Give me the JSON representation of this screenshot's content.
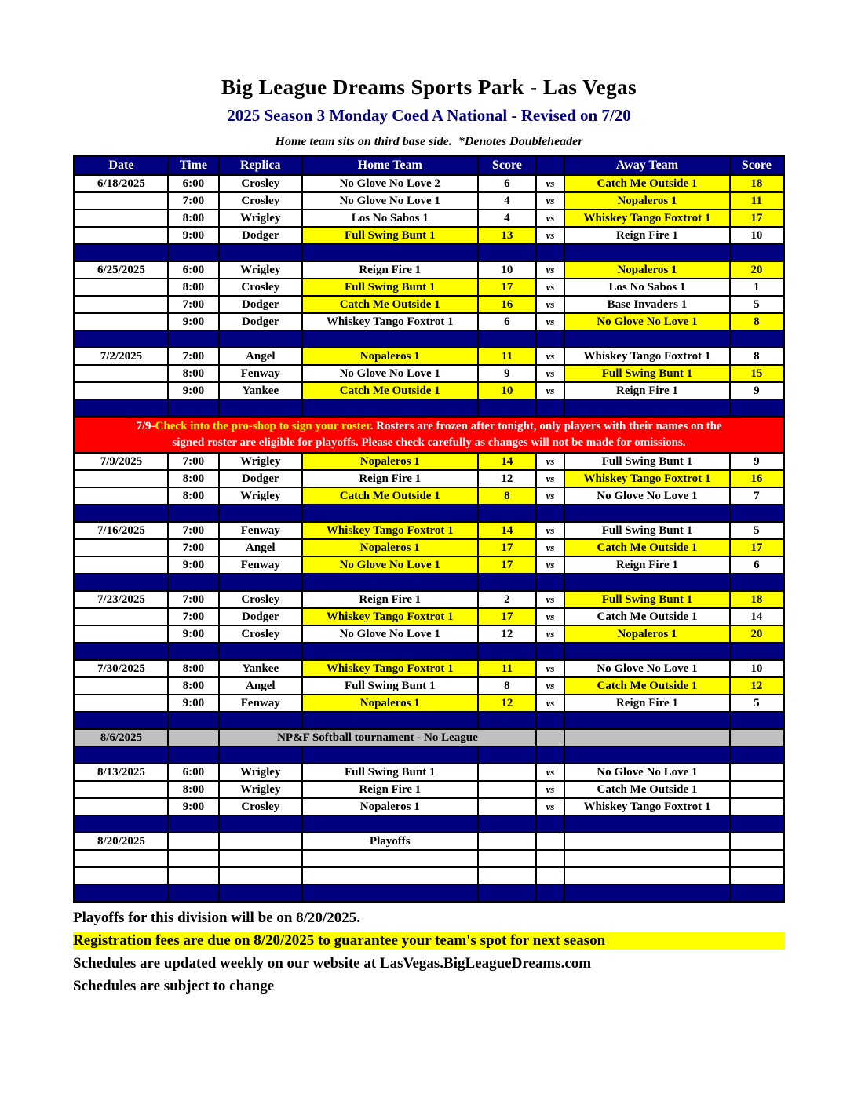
{
  "page": {
    "title": "Big League Dreams Sports Park - Las Vegas",
    "subtitle": "2025 Season 3 Monday Coed A National - Revised on 7/20",
    "note": "Home team sits on third base side.  *Denotes Doubleheader"
  },
  "colors": {
    "header_navy": "#000080",
    "winner_highlight_yellow": "#FFFF00",
    "banner_red": "#FF0000",
    "tournament_gray": "#C0C0C0",
    "subtitle_navy": "#000080"
  },
  "banner": {
    "line1_white_prefix": "7/9-",
    "line1_yellow": "Check into the pro-shop to sign your roster",
    "line1_white_suffix": ". Rosters are frozen after tonight, only players with their names on the",
    "line2": "signed roster are eligible for playoffs. Please check carefully as changes will not be made for omissions."
  },
  "table": {
    "headers": [
      "Date",
      "Time",
      "Replica",
      "Home Team",
      "Score",
      "",
      "Away Team",
      "Score"
    ],
    "vs_label": "vs",
    "rows": [
      {
        "type": "game",
        "date": "6/18/2025",
        "time": "6:00",
        "replica": "Crosley",
        "home": "No Glove No Love 2",
        "home_score": "6",
        "away": "Catch Me Outside 1",
        "away_score": "18",
        "winner": "away"
      },
      {
        "type": "game",
        "date": "",
        "time": "7:00",
        "replica": "Crosley",
        "home": "No Glove No Love 1",
        "home_score": "4",
        "away": "Nopaleros 1",
        "away_score": "11",
        "winner": "away"
      },
      {
        "type": "game",
        "date": "",
        "time": "8:00",
        "replica": "Wrigley",
        "home": "Los No Sabos 1",
        "home_score": "4",
        "away": "Whiskey Tango Foxtrot 1",
        "away_score": "17",
        "winner": "away"
      },
      {
        "type": "game",
        "date": "",
        "time": "9:00",
        "replica": "Dodger",
        "home": "Full Swing Bunt 1",
        "home_score": "13",
        "away": "Reign Fire 1",
        "away_score": "10",
        "winner": "home"
      },
      {
        "type": "separator"
      },
      {
        "type": "game",
        "date": "6/25/2025",
        "time": "6:00",
        "replica": "Wrigley",
        "home": "Reign Fire 1",
        "home_score": "10",
        "away": "Nopaleros 1",
        "away_score": "20",
        "winner": "away"
      },
      {
        "type": "game",
        "date": "",
        "time": "8:00",
        "replica": "Crosley",
        "home": "Full Swing Bunt 1",
        "home_score": "17",
        "away": "Los No Sabos 1",
        "away_score": "1",
        "winner": "home"
      },
      {
        "type": "game",
        "date": "",
        "time": "7:00",
        "replica": "Dodger",
        "home": "Catch Me Outside 1",
        "home_score": "16",
        "away": "Base Invaders 1",
        "away_score": "5",
        "winner": "home"
      },
      {
        "type": "game",
        "date": "",
        "time": "9:00",
        "replica": "Dodger",
        "home": "Whiskey Tango Foxtrot 1",
        "home_score": "6",
        "away": "No Glove No Love 1",
        "away_score": "8",
        "winner": "away"
      },
      {
        "type": "separator"
      },
      {
        "type": "game",
        "date": "7/2/2025",
        "time": "7:00",
        "replica": "Angel",
        "home": "Nopaleros 1",
        "home_score": "11",
        "away": "Whiskey Tango Foxtrot 1",
        "away_score": "8",
        "winner": "home"
      },
      {
        "type": "game",
        "date": "",
        "time": "8:00",
        "replica": "Fenway",
        "home": "No Glove No Love 1",
        "home_score": "9",
        "away": "Full Swing Bunt 1",
        "away_score": "15",
        "winner": "away"
      },
      {
        "type": "game",
        "date": "",
        "time": "9:00",
        "replica": "Yankee",
        "home": "Catch Me Outside 1",
        "home_score": "10",
        "away": "Reign Fire 1",
        "away_score": "9",
        "winner": "home"
      },
      {
        "type": "separator"
      },
      {
        "type": "banner"
      },
      {
        "type": "game",
        "date": "7/9/2025",
        "time": "7:00",
        "replica": "Wrigley",
        "home": "Nopaleros 1",
        "home_score": "14",
        "away": "Full Swing Bunt 1",
        "away_score": "9",
        "winner": "home"
      },
      {
        "type": "game",
        "date": "",
        "time": "8:00",
        "replica": "Dodger",
        "home": "Reign Fire 1",
        "home_score": "12",
        "away": "Whiskey Tango Foxtrot 1",
        "away_score": "16",
        "winner": "away"
      },
      {
        "type": "game",
        "date": "",
        "time": "8:00",
        "replica": "Wrigley",
        "home": "Catch Me Outside 1",
        "home_score": "8",
        "away": "No Glove No Love 1",
        "away_score": "7",
        "winner": "home"
      },
      {
        "type": "separator"
      },
      {
        "type": "game",
        "date": "7/16/2025",
        "time": "7:00",
        "replica": "Fenway",
        "home": "Whiskey Tango Foxtrot 1",
        "home_score": "14",
        "away": "Full Swing Bunt 1",
        "away_score": "5",
        "winner": "home"
      },
      {
        "type": "game",
        "date": "",
        "time": "7:00",
        "replica": "Angel",
        "home": "Nopaleros 1",
        "home_score": "17",
        "away": "Catch Me Outside 1",
        "away_score": "17",
        "winner": "both"
      },
      {
        "type": "game",
        "date": "",
        "time": "9:00",
        "replica": "Fenway",
        "home": "No Glove No Love 1",
        "home_score": "17",
        "away": "Reign Fire 1",
        "away_score": "6",
        "winner": "home"
      },
      {
        "type": "separator"
      },
      {
        "type": "game",
        "date": "7/23/2025",
        "time": "7:00",
        "replica": "Crosley",
        "home": "Reign Fire 1",
        "home_score": "2",
        "away": "Full Swing Bunt 1",
        "away_score": "18",
        "winner": "away"
      },
      {
        "type": "game",
        "date": "",
        "time": "7:00",
        "replica": "Dodger",
        "home": "Whiskey Tango Foxtrot 1",
        "home_score": "17",
        "away": "Catch Me Outside 1",
        "away_score": "14",
        "winner": "home"
      },
      {
        "type": "game",
        "date": "",
        "time": "9:00",
        "replica": "Crosley",
        "home": "No Glove No Love 1",
        "home_score": "12",
        "away": "Nopaleros 1",
        "away_score": "20",
        "winner": "away"
      },
      {
        "type": "separator"
      },
      {
        "type": "game",
        "date": "7/30/2025",
        "time": "8:00",
        "replica": "Yankee",
        "home": "Whiskey Tango Foxtrot 1",
        "home_score": "11",
        "away": "No Glove No Love 1",
        "away_score": "10",
        "winner": "home"
      },
      {
        "type": "game",
        "date": "",
        "time": "8:00",
        "replica": "Angel",
        "home": "Full Swing Bunt 1",
        "home_score": "8",
        "away": "Catch Me Outside 1",
        "away_score": "12",
        "winner": "away"
      },
      {
        "type": "game",
        "date": "",
        "time": "9:00",
        "replica": "Fenway",
        "home": "Nopaleros 1",
        "home_score": "12",
        "away": "Reign Fire 1",
        "away_score": "5",
        "winner": "home"
      },
      {
        "type": "separator"
      },
      {
        "type": "gray",
        "date": "8/6/2025",
        "label": "NP&F Softball tournament - No League"
      },
      {
        "type": "separator"
      },
      {
        "type": "game",
        "date": "8/13/2025",
        "time": "6:00",
        "replica": "Wrigley",
        "home": "Full Swing Bunt 1",
        "home_score": "",
        "away": "No Glove No Love 1",
        "away_score": "",
        "winner": ""
      },
      {
        "type": "game",
        "date": "",
        "time": "8:00",
        "replica": "Wrigley",
        "home": "Reign Fire 1",
        "home_score": "",
        "away": "Catch Me Outside 1",
        "away_score": "",
        "winner": ""
      },
      {
        "type": "game",
        "date": "",
        "time": "9:00",
        "replica": "Crosley",
        "home": "Nopaleros 1",
        "home_score": "",
        "away": "Whiskey Tango Foxtrot 1",
        "away_score": "",
        "winner": ""
      },
      {
        "type": "separator"
      },
      {
        "type": "label",
        "date": "8/20/2025",
        "label": "Playoffs"
      },
      {
        "type": "empty"
      },
      {
        "type": "empty"
      },
      {
        "type": "separator"
      }
    ]
  },
  "footer": {
    "lines": [
      {
        "text": "Playoffs for this division will be on 8/20/2025.",
        "highlight": false
      },
      {
        "text": "Registration fees are due on 8/20/2025 to guarantee your team's spot for next season",
        "highlight": true
      },
      {
        "text": "Schedules are updated weekly on our website at LasVegas.BigLeagueDreams.com",
        "highlight": false
      },
      {
        "text": "Schedules are subject to change",
        "highlight": false
      }
    ]
  }
}
